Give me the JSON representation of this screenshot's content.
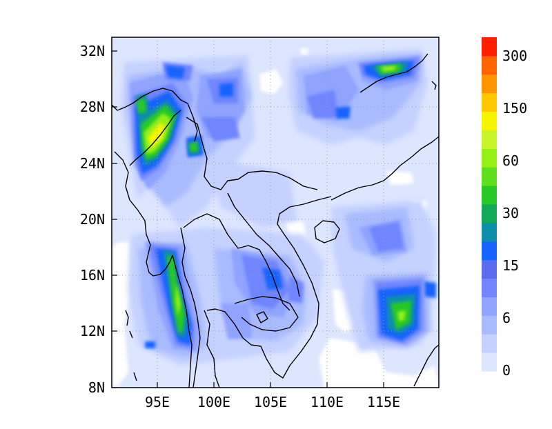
{
  "map": {
    "lat_labels": [
      "32N",
      "28N",
      "24N",
      "20N",
      "16N",
      "12N",
      "8N"
    ],
    "lon_labels": [
      "95E",
      "100E",
      "105E",
      "110E",
      "115E"
    ],
    "colorbar": {
      "labels": [
        "0",
        "6",
        "15",
        "30",
        "60",
        "150",
        "300"
      ],
      "colors": [
        "#dde6ff",
        "#c5d2ff",
        "#a9baff",
        "#8fa3ff",
        "#7085ff",
        "#5a6cf0",
        "#1763ff",
        "#0c8fa8",
        "#12a85a",
        "#28c828",
        "#5ee01c",
        "#96f014",
        "#c8f52a",
        "#f5f500",
        "#ffc800",
        "#ff9600",
        "#ff6400",
        "#ff1e00"
      ]
    }
  }
}
